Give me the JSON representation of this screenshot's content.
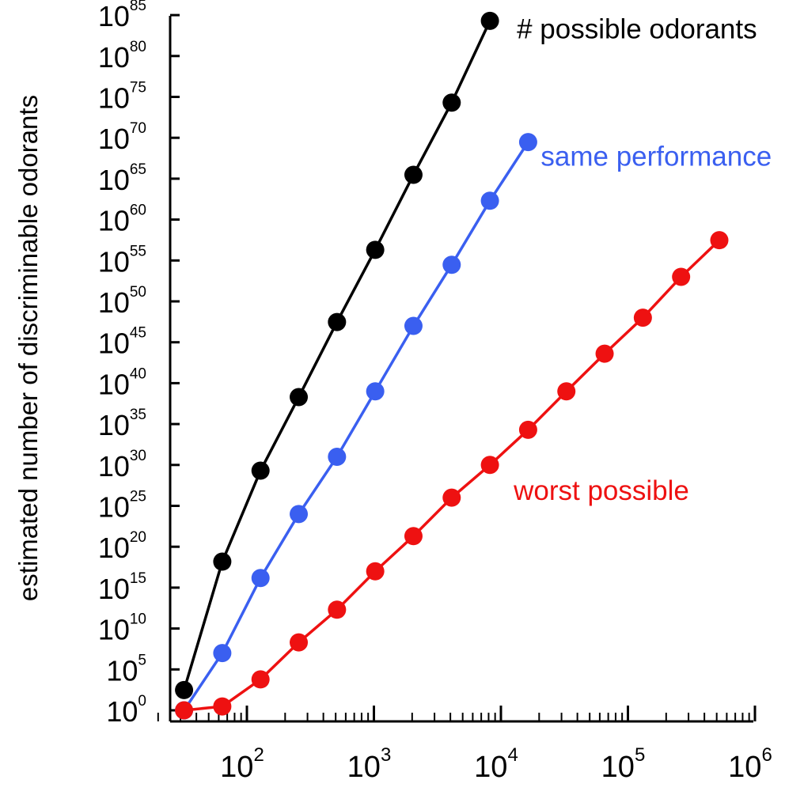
{
  "chart_data": {
    "type": "line",
    "title": "",
    "xlabel": "",
    "ylabel": "estimated number of discriminable odorants",
    "x_scale": "log",
    "y_scale": "log",
    "xlim": [
      20,
      1000000
    ],
    "ylim": [
      1,
      1e+85
    ],
    "x_tick_labels": [
      {
        "base": "10",
        "exp": "2",
        "value": 100
      },
      {
        "base": "10",
        "exp": "3",
        "value": 1000
      },
      {
        "base": "10",
        "exp": "4",
        "value": 10000
      },
      {
        "base": "10",
        "exp": "5",
        "value": 100000
      },
      {
        "base": "10",
        "exp": "6",
        "value": 1000000
      }
    ],
    "y_tick_labels": [
      {
        "base": "10",
        "exp": "0",
        "value": 1
      },
      {
        "base": "10",
        "exp": "5",
        "value": 100000.0
      },
      {
        "base": "10",
        "exp": "10",
        "value": 10000000000.0
      },
      {
        "base": "10",
        "exp": "15",
        "value": 1000000000000000.0
      },
      {
        "base": "10",
        "exp": "20",
        "value": 1e+20
      },
      {
        "base": "10",
        "exp": "25",
        "value": 1e+25
      },
      {
        "base": "10",
        "exp": "30",
        "value": 1e+30
      },
      {
        "base": "10",
        "exp": "35",
        "value": 1e+35
      },
      {
        "base": "10",
        "exp": "40",
        "value": 1e+40
      },
      {
        "base": "10",
        "exp": "45",
        "value": 1e+45
      },
      {
        "base": "10",
        "exp": "50",
        "value": 1e+50
      },
      {
        "base": "10",
        "exp": "55",
        "value": 1e+55
      },
      {
        "base": "10",
        "exp": "60",
        "value": 1e+60
      },
      {
        "base": "10",
        "exp": "65",
        "value": 1e+65
      },
      {
        "base": "10",
        "exp": "70",
        "value": 1e+70
      },
      {
        "base": "10",
        "exp": "75",
        "value": 1e+75
      },
      {
        "base": "10",
        "exp": "80",
        "value": 1e+80
      },
      {
        "base": "10",
        "exp": "85",
        "value": 1e+85
      }
    ],
    "grid": false,
    "legend": "inline labels at series ends",
    "series": [
      {
        "name": "# possible odorants",
        "color": "#000000",
        "x": [
          32,
          64,
          128,
          256,
          512,
          1024,
          2048,
          4096,
          8192
        ],
        "y": [
          300.0,
          1.5e+18,
          2e+29,
          2e+38,
          3e+47,
          2e+56,
          3e+65,
          2e+74,
          2e+84
        ]
      },
      {
        "name": "same performance",
        "color": "#3a5ff0",
        "x": [
          32,
          64,
          128,
          256,
          512,
          1024,
          2048,
          4096,
          8192,
          16384
        ],
        "y": [
          1,
          10000000.0,
          1.5e+16,
          1e+24,
          1e+31,
          1e+39,
          1e+47,
          3e+54,
          2e+62,
          3e+69
        ]
      },
      {
        "name": "worst possible",
        "color": "#ee1111",
        "x": [
          32,
          64,
          128,
          256,
          512,
          1024,
          2048,
          4096,
          8192,
          16384,
          32768,
          65536,
          131072,
          262144,
          524288
        ],
        "y": [
          1,
          3,
          6000.0,
          200000000.0,
          2000000000000.0,
          1e+17,
          2e+21,
          1e+26,
          1e+30,
          2e+34,
          1e+39,
          4e+43,
          1e+48,
          1e+53,
          3e+57
        ]
      }
    ]
  }
}
